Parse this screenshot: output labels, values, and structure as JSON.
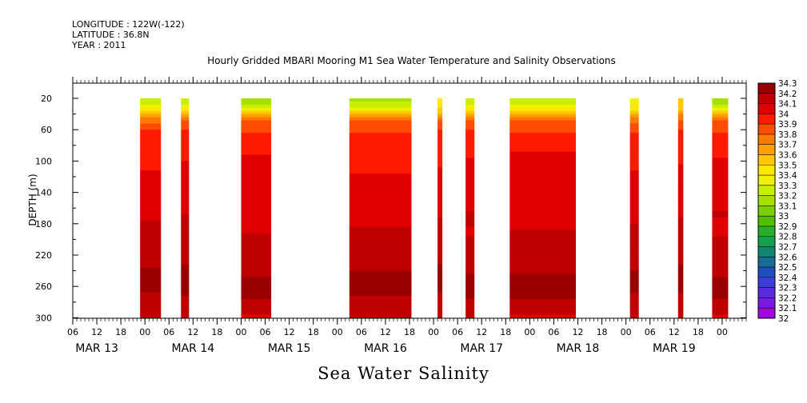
{
  "header": {
    "longitude": "LONGITUDE : 122W(-122)",
    "latitude": "LATITUDE : 36.8N",
    "year": "YEAR : 2011"
  },
  "chart_data": {
    "type": "heatmap",
    "title": "Hourly Gridded MBARI Mooring M1 Sea Water Temperature and Salinity Observations",
    "xlabel": "Sea Water Salinity",
    "ylabel": "DEPTH (m)",
    "xlim_hours": [
      0,
      168
    ],
    "x_start_hour": 6,
    "ylim": [
      300,
      0
    ],
    "y_ticks": [
      20,
      60,
      100,
      140,
      180,
      220,
      260,
      300
    ],
    "x_hour_ticks": [
      "06",
      "12",
      "18",
      "00",
      "06",
      "12",
      "18",
      "00",
      "06",
      "12",
      "18",
      "00",
      "06",
      "12",
      "18",
      "00",
      "06",
      "12",
      "18",
      "00",
      "06",
      "12",
      "18",
      "00",
      "06",
      "12",
      "18",
      "00"
    ],
    "x_day_labels": [
      {
        "label": "MAR 13",
        "hour": 6
      },
      {
        "label": "MAR 14",
        "hour": 30
      },
      {
        "label": "MAR 15",
        "hour": 54
      },
      {
        "label": "MAR 16",
        "hour": 78
      },
      {
        "label": "MAR 17",
        "hour": 102
      },
      {
        "label": "MAR 18",
        "hour": 126
      },
      {
        "label": "MAR 19",
        "hour": 150
      }
    ],
    "colorbar_levels": [
      "34.3",
      "34.2",
      "34.1",
      "34",
      "33.9",
      "33.8",
      "33.7",
      "33.6",
      "33.5",
      "33.4",
      "33.3",
      "33.2",
      "33.1",
      "33",
      "32.9",
      "32.8",
      "32.7",
      "32.6",
      "32.5",
      "32.4",
      "32.3",
      "32.2",
      "32.1",
      "32"
    ],
    "colorbar_colors": [
      "#9a0000",
      "#c00000",
      "#e00000",
      "#ff1a00",
      "#ff4c00",
      "#ff7a00",
      "#ffa000",
      "#ffc800",
      "#ffe800",
      "#f0f000",
      "#c8ee00",
      "#a6e000",
      "#7cd000",
      "#52c000",
      "#2aae2a",
      "#10a050",
      "#108870",
      "#1a6a9a",
      "#2050c0",
      "#3c3cd8",
      "#5a2ae0",
      "#7a1ae6",
      "#a00ae0",
      "#c800e8"
    ],
    "segments": [
      {
        "start": 16.8,
        "end": 22.0,
        "top": 33.3
      },
      {
        "start": 27.0,
        "end": 29.0,
        "top": 33.3
      },
      {
        "start": 42.0,
        "end": 49.5,
        "top": 33.2
      },
      {
        "start": 69.0,
        "end": 84.5,
        "top": 33.2
      },
      {
        "start": 91.0,
        "end": 92.2,
        "top": 33.5
      },
      {
        "start": 98.0,
        "end": 100.2,
        "top": 33.3
      },
      {
        "start": 109.0,
        "end": 125.5,
        "top": 33.3
      },
      {
        "start": 139.0,
        "end": 141.2,
        "top": 33.4
      },
      {
        "start": 151.0,
        "end": 152.3,
        "top": 33.6
      },
      {
        "start": 159.5,
        "end": 163.5,
        "top": 33.2
      }
    ],
    "depth_profile": [
      {
        "depth": 20,
        "value": 33.3
      },
      {
        "depth": 30,
        "value": 33.6
      },
      {
        "depth": 40,
        "value": 33.8
      },
      {
        "depth": 55,
        "value": 33.9
      },
      {
        "depth": 70,
        "value": 34.0
      },
      {
        "depth": 100,
        "value": 34.05
      },
      {
        "depth": 140,
        "value": 34.1
      },
      {
        "depth": 180,
        "value": 34.15
      },
      {
        "depth": 220,
        "value": 34.2
      },
      {
        "depth": 260,
        "value": 34.3
      },
      {
        "depth": 285,
        "value": 34.2
      },
      {
        "depth": 300,
        "value": 34.15
      }
    ]
  }
}
